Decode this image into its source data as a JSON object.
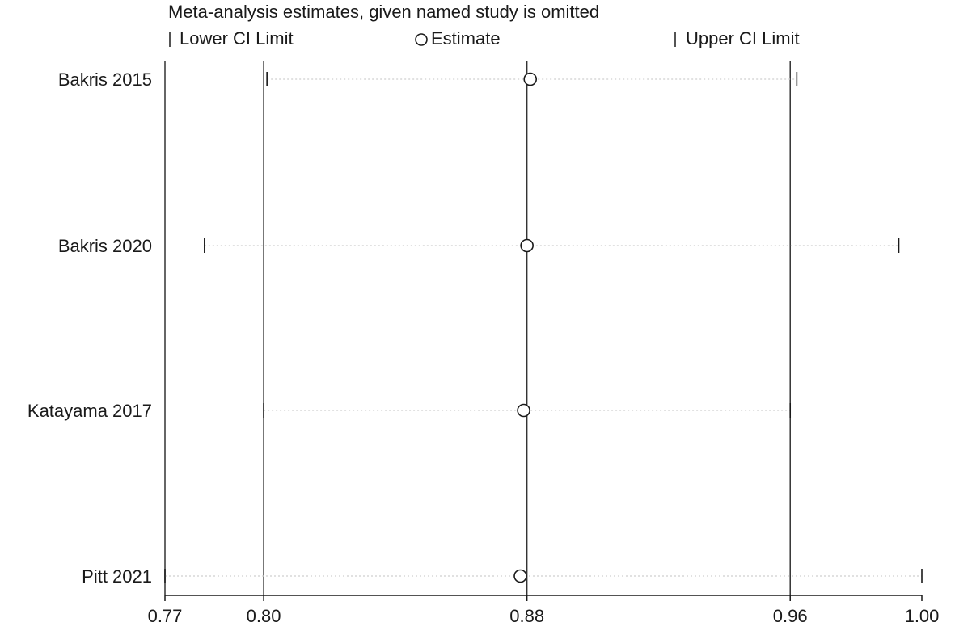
{
  "chart_data": {
    "type": "scatter",
    "title": "Meta-analysis estimates, given named study is omitted",
    "legend": {
      "position": "top",
      "entries": [
        {
          "symbol": "tick",
          "label": "Lower CI Limit"
        },
        {
          "symbol": "circle",
          "label": "Estimate"
        },
        {
          "symbol": "tick",
          "label": "Upper CI Limit"
        }
      ]
    },
    "xaxis": {
      "ticks": [
        0.77,
        0.8,
        0.88,
        0.96,
        1.0
      ],
      "tick_labels": [
        "0.77",
        "0.80",
        "0.88",
        "0.96",
        "1.00"
      ],
      "range": [
        0.77,
        1.0
      ]
    },
    "reference_lines": [
      0.8,
      0.88,
      0.96
    ],
    "studies": [
      {
        "label": "Bakris 2015",
        "lower": 0.801,
        "estimate": 0.881,
        "upper": 0.962
      },
      {
        "label": "Bakris 2020",
        "lower": 0.782,
        "estimate": 0.88,
        "upper": 0.993
      },
      {
        "label": "Katayama 2017",
        "lower": 0.8,
        "estimate": 0.879,
        "upper": 0.96
      },
      {
        "label": "Pitt 2021",
        "lower": 0.77,
        "estimate": 0.878,
        "upper": 1.0
      }
    ],
    "grid": false
  }
}
